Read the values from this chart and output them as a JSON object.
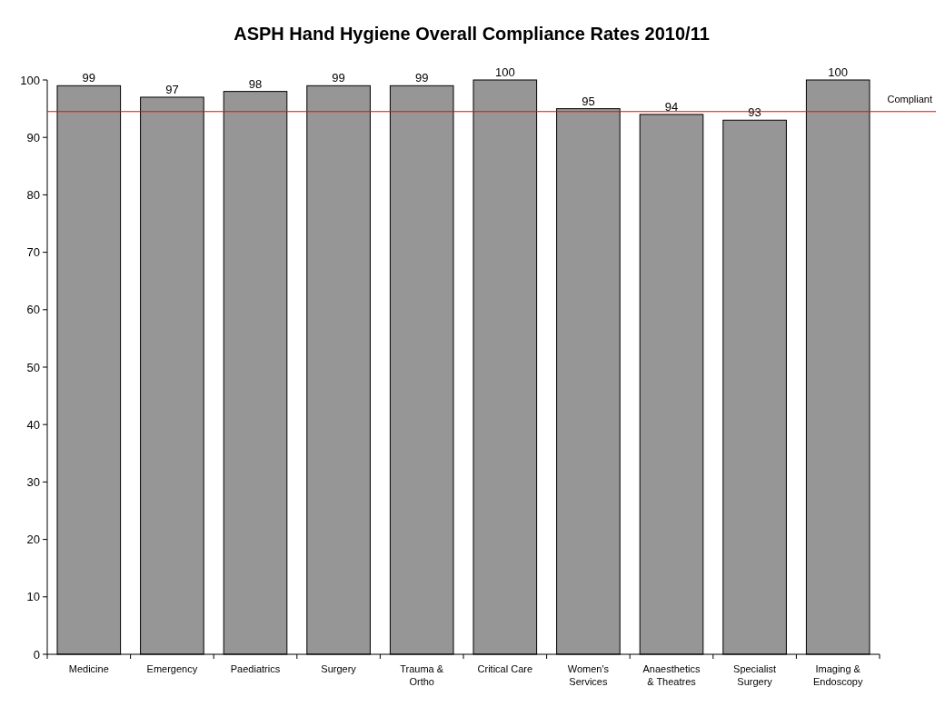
{
  "chart_data": {
    "type": "bar",
    "title": "ASPH Hand Hygiene Overall Compliance Rates 2010/11",
    "categories": [
      "Medicine",
      "Emergency",
      "Paediatrics",
      "Surgery",
      "Trauma & Ortho",
      "Critical Care",
      "Women's Services",
      "Anaesthetics & Theatres",
      "Specialist Surgery",
      "Imaging & Endoscopy"
    ],
    "values": [
      99,
      97,
      98,
      99,
      99,
      100,
      95,
      94,
      93,
      100
    ],
    "color": "#969696",
    "ylim": [
      0,
      100
    ],
    "yticks": [
      0,
      10,
      20,
      30,
      40,
      50,
      60,
      70,
      80,
      90,
      100
    ],
    "grid": false,
    "data_labels": true,
    "ref_lines": [
      {
        "axis": "y",
        "value": 94.5,
        "label": "Compliant",
        "color": "#ff0000"
      }
    ]
  }
}
